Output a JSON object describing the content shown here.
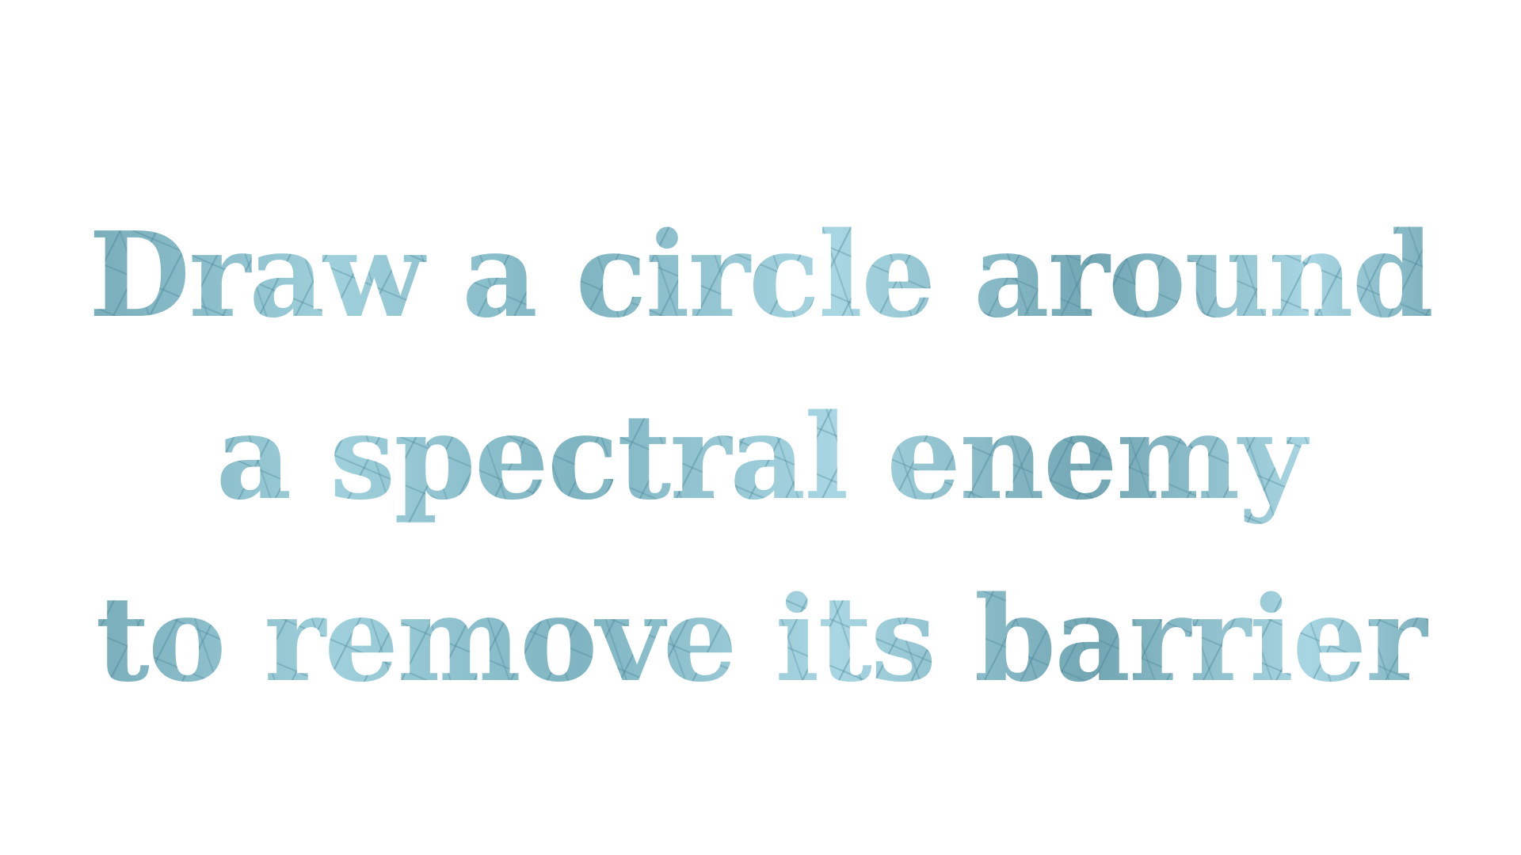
{
  "instruction": {
    "lines": [
      "Draw a circle around",
      "a spectral enemy",
      "to remove its barrier"
    ]
  },
  "colors": {
    "background": "#ffffff",
    "ice_light": "#a8d6e2",
    "ice_dark": "#5f95a3",
    "crack": "#46829a"
  }
}
